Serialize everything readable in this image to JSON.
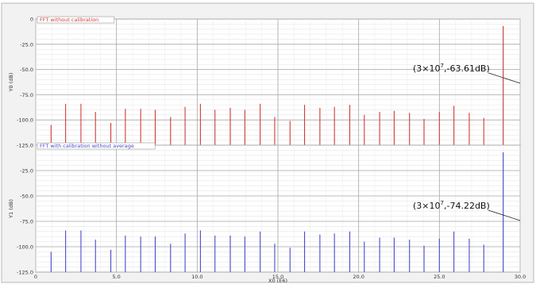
{
  "chart_data": [
    {
      "type": "bar",
      "legend": "FFT without calibration",
      "color": "#d23a3a",
      "ylabel": "Y0 (dB)",
      "xlim": [
        0,
        30
      ],
      "ylim": [
        -125,
        0
      ],
      "yticks": [
        {
          "value": 0,
          "label": "0"
        },
        {
          "value": -25,
          "label": "-25.0"
        },
        {
          "value": -50,
          "label": "-50.0"
        },
        {
          "value": -75,
          "label": "-75.0"
        },
        {
          "value": -100,
          "label": "-100.0"
        },
        {
          "value": -125,
          "label": "-125.0"
        }
      ],
      "x": [
        0.95,
        1.85,
        2.8,
        3.7,
        4.65,
        5.55,
        6.5,
        7.4,
        8.35,
        9.25,
        10.2,
        11.1,
        12.05,
        12.95,
        13.9,
        14.8,
        15.75,
        16.65,
        17.6,
        18.5,
        19.45,
        20.35,
        21.3,
        22.2,
        23.15,
        24.05,
        25.0,
        25.9,
        26.85,
        27.75,
        28.95
      ],
      "values": [
        -105,
        -84,
        -84,
        -92,
        -103,
        -89,
        -89,
        -90,
        -97,
        -87,
        -84,
        -90,
        -88,
        -90,
        -84,
        -97,
        -101,
        -85,
        -88,
        -87,
        -85,
        -95,
        -92,
        -91,
        -93,
        -99,
        -92,
        -86,
        -93,
        -98,
        -7
      ],
      "annotation": {
        "prefix": "(3×10",
        "exp": "7",
        "suffix": ",-63.61dB)",
        "x": 30,
        "y": -63.61
      }
    },
    {
      "type": "bar",
      "legend": "FFT with calibration without average",
      "color": "#4a4ad0",
      "ylabel": "Y1 (dB)",
      "xlabel": "X0 (E6)",
      "xlim": [
        0,
        30
      ],
      "ylim": [
        -125,
        0
      ],
      "yticks": [
        {
          "value": -25,
          "label": "-25.0"
        },
        {
          "value": -50,
          "label": "-50.0"
        },
        {
          "value": -75,
          "label": "-75.0"
        },
        {
          "value": -100,
          "label": "-100.0"
        },
        {
          "value": -125,
          "label": "-125.0"
        }
      ],
      "xticks": [
        {
          "value": 0,
          "label": "0"
        },
        {
          "value": 5,
          "label": "5.0"
        },
        {
          "value": 10,
          "label": "10.0"
        },
        {
          "value": 15,
          "label": "15.0"
        },
        {
          "value": 20,
          "label": "20.0"
        },
        {
          "value": 25,
          "label": "25.0"
        },
        {
          "value": 30,
          "label": "30.0"
        }
      ],
      "x": [
        0.95,
        1.85,
        2.8,
        3.7,
        4.65,
        5.55,
        6.5,
        7.4,
        8.35,
        9.25,
        10.2,
        11.1,
        12.05,
        12.95,
        13.9,
        14.8,
        15.75,
        16.65,
        17.6,
        18.5,
        19.45,
        20.35,
        21.3,
        22.2,
        23.15,
        24.05,
        25.0,
        25.9,
        26.85,
        27.75,
        28.95
      ],
      "values": [
        -105,
        -84,
        -84,
        -93,
        -103,
        -89,
        -90,
        -90,
        -97,
        -87,
        -84,
        -89,
        -89,
        -90,
        -85,
        -97,
        -101,
        -85,
        -88,
        -87,
        -85,
        -95,
        -91,
        -91,
        -93,
        -99,
        -92,
        -85,
        -92,
        -98,
        -7
      ],
      "annotation": {
        "prefix": "(3×10",
        "exp": "7",
        "suffix": ",-74.22dB)",
        "x": 30,
        "y": -74.22
      }
    }
  ]
}
